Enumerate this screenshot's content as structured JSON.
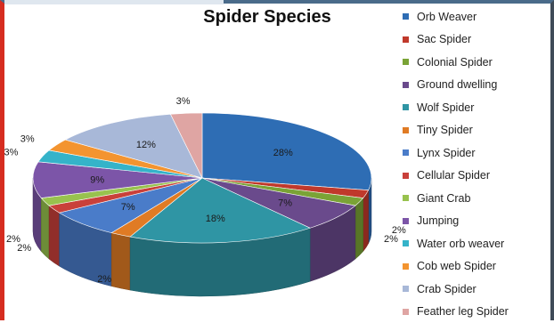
{
  "chart_data": {
    "type": "pie",
    "title": "Spider Species",
    "legend_position": "right",
    "slices": [
      {
        "label": "Orb Weaver",
        "value": 28,
        "display": "28%",
        "color": "#2e6db4"
      },
      {
        "label": "Sac Spider",
        "value": 2,
        "display": "2%",
        "color": "#c0392b"
      },
      {
        "label": "Colonial Spider",
        "value": 2,
        "display": "2%",
        "color": "#7aa336"
      },
      {
        "label": "Ground dwelling",
        "value": 7,
        "display": "7%",
        "color": "#6a4a8c"
      },
      {
        "label": "Wolf Spider",
        "value": 18,
        "display": "18%",
        "color": "#2f95a4"
      },
      {
        "label": "Tiny Spider",
        "value": 2,
        "display": "2%",
        "color": "#e07b24"
      },
      {
        "label": "Lynx Spider",
        "value": 7,
        "display": "7%",
        "color": "#4a7cc9"
      },
      {
        "label": "Cellular Spider",
        "value": 2,
        "display": "2%",
        "color": "#c9403a"
      },
      {
        "label": "Giant Crab",
        "value": 2,
        "display": "2%",
        "color": "#98c24e"
      },
      {
        "label": "Jumping",
        "value": 9,
        "display": "9%",
        "color": "#7c55a8"
      },
      {
        "label": "Water orb weaver",
        "value": 3,
        "display": "3%",
        "color": "#35b3c9"
      },
      {
        "label": "Cob web Spider",
        "value": 3,
        "display": "3%",
        "color": "#f39430"
      },
      {
        "label": "Crab Spider",
        "value": 12,
        "display": "12%",
        "color": "#a8b8d8"
      },
      {
        "label": "Feather leg Spider",
        "value": 3,
        "display": "3%",
        "color": "#dfa5a3"
      }
    ]
  }
}
